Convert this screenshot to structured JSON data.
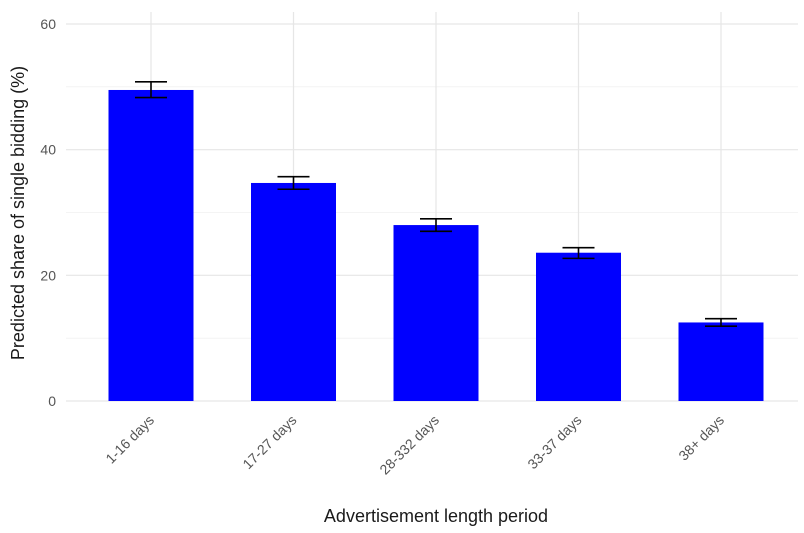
{
  "chart_data": {
    "type": "bar",
    "title": "",
    "xlabel": "Advertisement length period",
    "ylabel": "Predicted share of single bidding (%)",
    "categories": [
      "1-16 days",
      "17-27 days",
      "28-332 days",
      "33-37 days",
      "38+ days"
    ],
    "values": [
      49.5,
      34.7,
      28.0,
      23.6,
      12.5
    ],
    "error_low": [
      48.3,
      33.7,
      27.0,
      22.7,
      11.9
    ],
    "error_high": [
      50.8,
      35.7,
      29.0,
      24.4,
      13.1
    ],
    "ylim": [
      0,
      60
    ],
    "yticks": [
      0,
      20,
      40,
      60
    ],
    "grid": true,
    "legend": "none",
    "bar_color": "#0000FF",
    "error_color": "#000000"
  }
}
